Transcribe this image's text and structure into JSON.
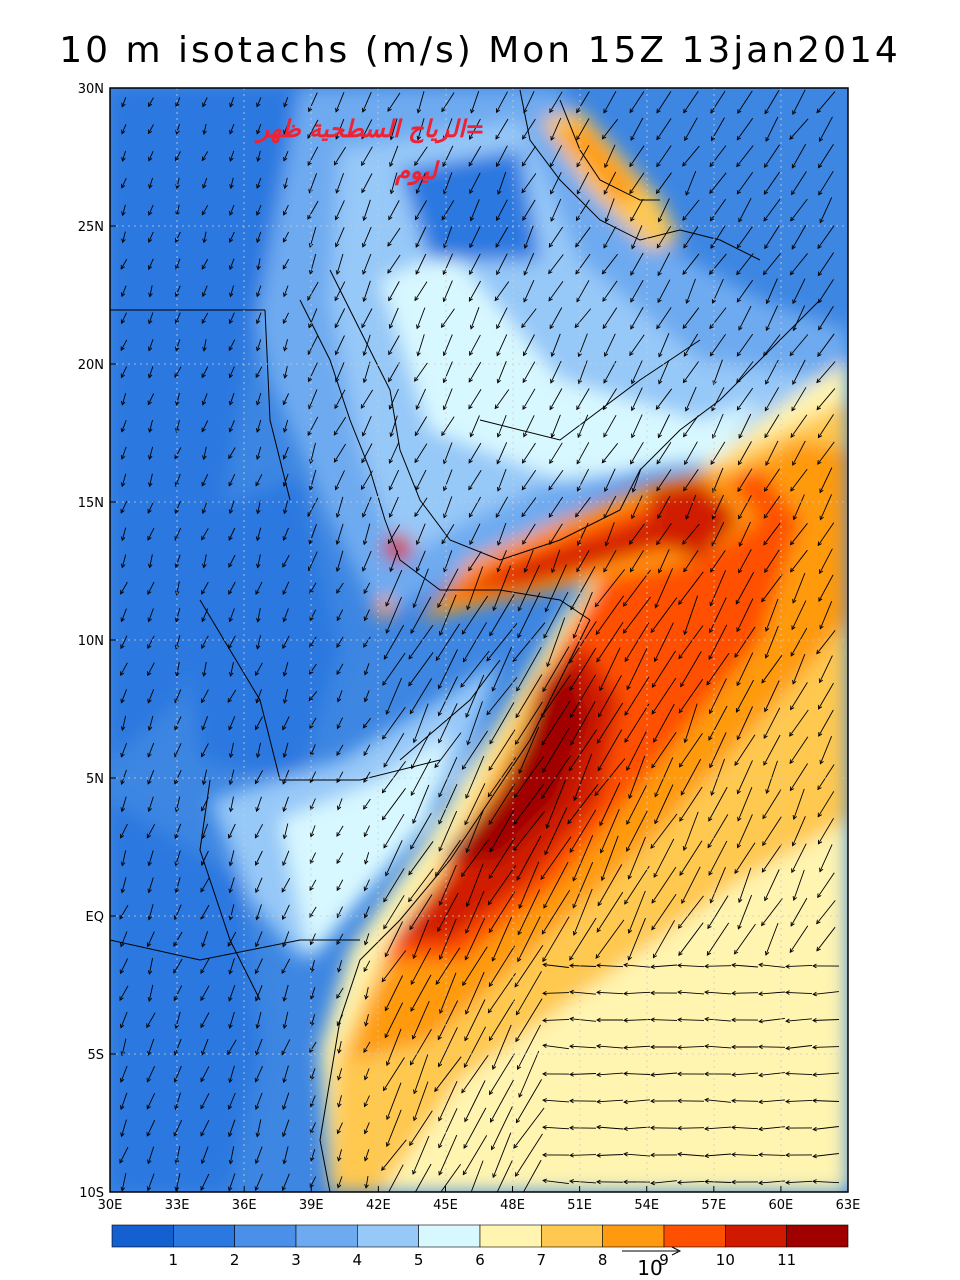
{
  "title": "10 m isotachs (m/s) Mon 15Z 13jan2014",
  "overlay_text": {
    "line1": "=الرياح السطحية ظهر",
    "line2": "ليوم"
  },
  "axes": {
    "lat_labels": [
      "30N",
      "25N",
      "20N",
      "15N",
      "10N",
      "5N",
      "EQ",
      "5S",
      "10S"
    ],
    "lon_labels": [
      "30E",
      "33E",
      "36E",
      "39E",
      "42E",
      "45E",
      "48E",
      "51E",
      "54E",
      "57E",
      "60E",
      "63E"
    ],
    "lat_range": [
      -10,
      30
    ],
    "lon_range": [
      30,
      63
    ]
  },
  "colorbar": {
    "colors": [
      "#1560d0",
      "#2a78e0",
      "#4a90e8",
      "#6eaaf0",
      "#96c8f8",
      "#d8f8ff",
      "#fff4b0",
      "#ffc850",
      "#ff9a10",
      "#ff5000",
      "#d01a00",
      "#a00000"
    ],
    "labels": [
      "1",
      "2",
      "3",
      "4",
      "5",
      "6",
      "7",
      "8",
      "9",
      "10",
      "11"
    ]
  },
  "reference_vector": {
    "label": "10"
  }
}
